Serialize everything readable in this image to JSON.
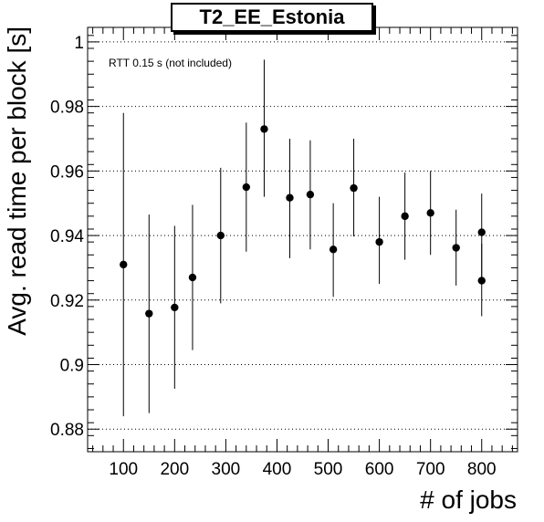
{
  "chart_data": {
    "type": "scatter",
    "title": "T2_EE_Estonia",
    "xlabel": "# of jobs",
    "ylabel": "Avg. read time per block [s]",
    "annotation": "RTT 0.15 s (not included)",
    "xlim": [
      30,
      870
    ],
    "ylim": [
      0.873,
      1.0045
    ],
    "x_ticks": [
      100,
      200,
      300,
      400,
      500,
      600,
      700,
      800
    ],
    "y_ticks": [
      0.88,
      0.9,
      0.92,
      0.94,
      0.96,
      0.98,
      1
    ],
    "y_tick_labels": [
      "0.88",
      "0.9",
      "0.92",
      "0.94",
      "0.96",
      "0.98",
      "1"
    ],
    "grid": "horizontal-dotted",
    "points": [
      {
        "x": 100,
        "y": 0.931,
        "ylow": 0.884,
        "yhigh": 0.978
      },
      {
        "x": 150,
        "y": 0.9158,
        "ylow": 0.885,
        "yhigh": 0.9465
      },
      {
        "x": 200,
        "y": 0.9177,
        "ylow": 0.8925,
        "yhigh": 0.943
      },
      {
        "x": 235,
        "y": 0.927,
        "ylow": 0.9045,
        "yhigh": 0.9495
      },
      {
        "x": 290,
        "y": 0.94,
        "ylow": 0.919,
        "yhigh": 0.961
      },
      {
        "x": 340,
        "y": 0.955,
        "ylow": 0.935,
        "yhigh": 0.975
      },
      {
        "x": 375,
        "y": 0.973,
        "ylow": 0.952,
        "yhigh": 0.9945
      },
      {
        "x": 425,
        "y": 0.9517,
        "ylow": 0.933,
        "yhigh": 0.97
      },
      {
        "x": 465,
        "y": 0.9527,
        "ylow": 0.9357,
        "yhigh": 0.9695
      },
      {
        "x": 510,
        "y": 0.9357,
        "ylow": 0.921,
        "yhigh": 0.95
      },
      {
        "x": 550,
        "y": 0.9547,
        "ylow": 0.9397,
        "yhigh": 0.97
      },
      {
        "x": 600,
        "y": 0.938,
        "ylow": 0.925,
        "yhigh": 0.952
      },
      {
        "x": 650,
        "y": 0.946,
        "ylow": 0.9325,
        "yhigh": 0.9595
      },
      {
        "x": 700,
        "y": 0.947,
        "ylow": 0.934,
        "yhigh": 0.96
      },
      {
        "x": 750,
        "y": 0.9362,
        "ylow": 0.9245,
        "yhigh": 0.948
      },
      {
        "x": 800,
        "y": 0.941,
        "ylow": 0.927,
        "yhigh": 0.953
      },
      {
        "x": 800,
        "y": 0.926,
        "ylow": 0.915,
        "yhigh": 0.9375
      }
    ]
  }
}
